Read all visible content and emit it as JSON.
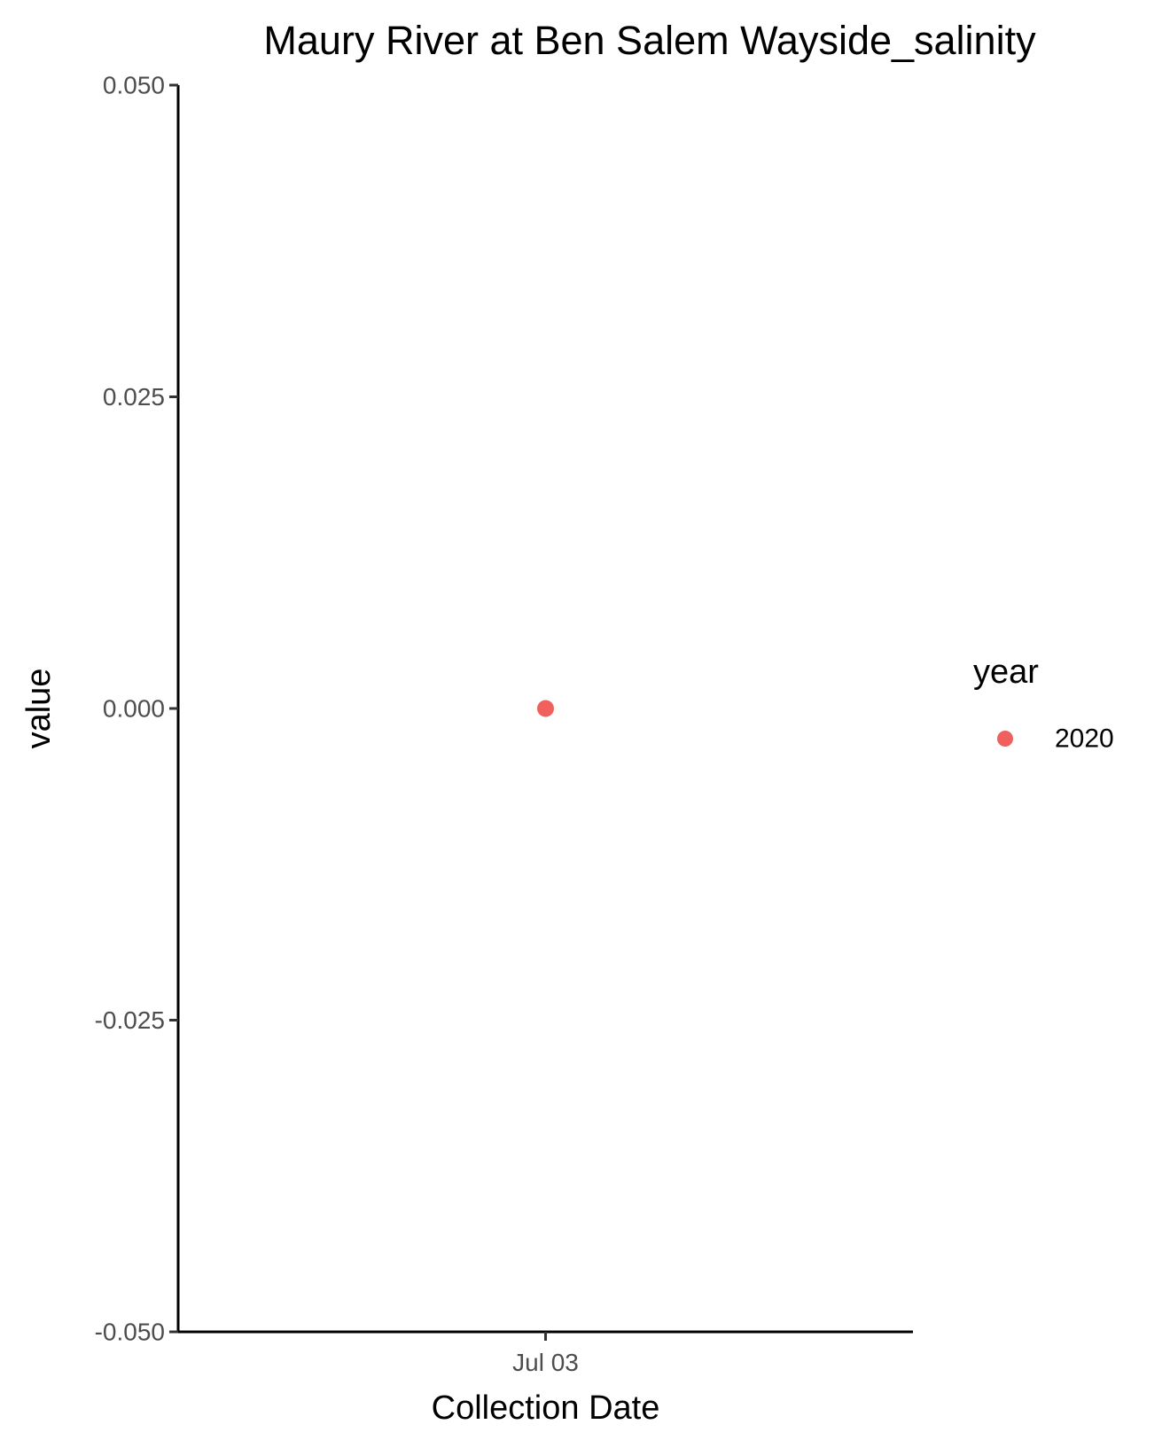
{
  "chart_data": {
    "type": "scatter",
    "title": "Maury River at Ben Salem Wayside_salinity",
    "xlabel": "Collection Date",
    "ylabel": "value",
    "x_ticks": [
      "Jul 03"
    ],
    "y_ticks": [
      "-0.050",
      "-0.025",
      "0.000",
      "0.025",
      "0.050"
    ],
    "ylim": [
      -0.05,
      0.05
    ],
    "grid": false,
    "legend": {
      "title": "year",
      "placement": "right",
      "entries": [
        {
          "label": "2020",
          "color": "#F0615E"
        }
      ]
    },
    "series": [
      {
        "name": "2020",
        "color": "#F0615E",
        "points": [
          {
            "x": "Jul 03",
            "y": 0.0
          }
        ]
      }
    ]
  }
}
